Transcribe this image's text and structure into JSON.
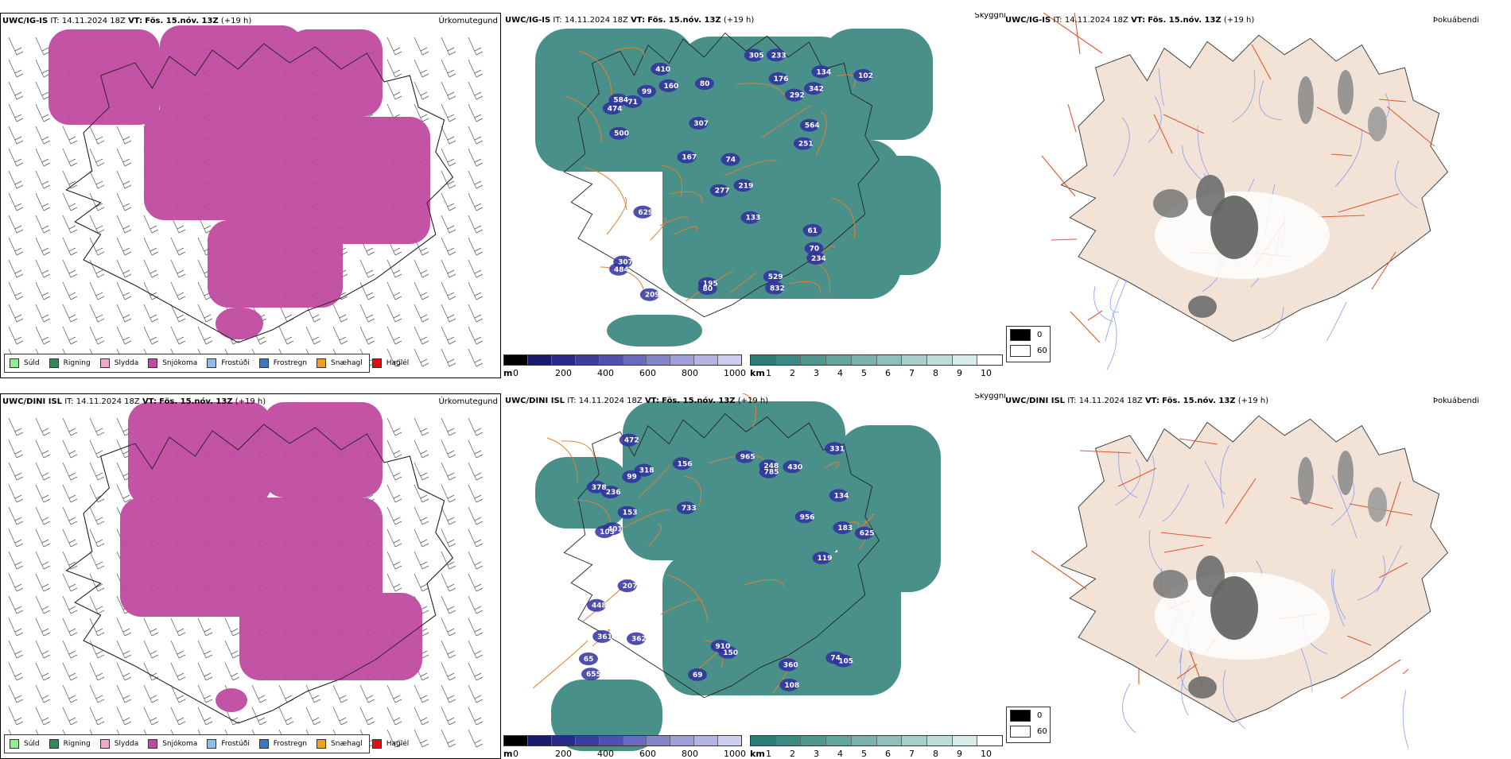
{
  "rows": [
    {
      "model": "UWC/IG-IS",
      "it_label": "IT:",
      "it_value": "14.11.2024 18Z",
      "vt_label": "VT:",
      "vt_value": "Fös. 15.nóv. 13Z",
      "lead": "(+19 h)"
    },
    {
      "model": "UWC/DINI ISL",
      "it_label": "IT:",
      "it_value": "14.11.2024 18Z",
      "vt_label": "VT:",
      "vt_value": "Fös. 15.nóv. 13Z",
      "lead": "(+19 h)"
    }
  ],
  "panel_titles": {
    "precip_type": "Úrkomutegund",
    "visibility": "Skyggni",
    "fog": "Þokuábendi"
  },
  "precip_legend": [
    {
      "label": "Súld",
      "color": "#90ee90"
    },
    {
      "label": "Rigning",
      "color": "#2e8b57"
    },
    {
      "label": "Slydda",
      "color": "#f4a7c8"
    },
    {
      "label": "Snjókoma",
      "color": "#c04aa0"
    },
    {
      "label": "Frostúði",
      "color": "#8fbde8"
    },
    {
      "label": "Frostregn",
      "color": "#3d78c4"
    },
    {
      "label": "Snæhagl",
      "color": "#f0a020"
    },
    {
      "label": "Haglél",
      "color": "#e01010"
    }
  ],
  "cloud_base_scale": {
    "unit": "m",
    "ticks": [
      "0",
      "200",
      "400",
      "600",
      "800",
      "1000"
    ],
    "colors": [
      "#000000",
      "#1a1a6e",
      "#2a2a8c",
      "#3d3d9e",
      "#5050b0",
      "#6a6abe",
      "#8585cc",
      "#a0a0da",
      "#b5b5e5",
      "#cdcdf0"
    ]
  },
  "visibility_scale": {
    "unit": "km",
    "ticks": [
      "1",
      "2",
      "3",
      "4",
      "5",
      "6",
      "7",
      "8",
      "9",
      "10"
    ],
    "colors": [
      "#2a7d76",
      "#3a8a83",
      "#4d9790",
      "#62a59e",
      "#78b3ad",
      "#8fc1bc",
      "#a7cfcb",
      "#bfdeda",
      "#d7ece9",
      "#ffffff"
    ]
  },
  "fog_legend": [
    {
      "label": "0",
      "color": "#000000"
    },
    {
      "label": "60",
      "color": "#ffffff"
    }
  ],
  "cloud_labels": [
    [
      "410",
      "564",
      "832",
      "474",
      "342",
      "484",
      "234",
      "277",
      "176",
      "292",
      "307",
      "233",
      "629",
      "500",
      "195",
      "219",
      "251",
      "160",
      "584",
      "307",
      "305",
      "209",
      "167",
      "529",
      "99",
      "102",
      "134",
      "80",
      "133",
      "80",
      "71",
      "74",
      "70",
      "61"
    ],
    [
      "655",
      "183",
      "248",
      "207",
      "361",
      "318",
      "360",
      "956",
      "401",
      "378",
      "733",
      "785",
      "910",
      "472",
      "362",
      "156",
      "150",
      "448",
      "625",
      "430",
      "965",
      "108",
      "99",
      "103",
      "134",
      "153",
      "105",
      "119",
      "65",
      "69",
      "331",
      "236",
      "74"
    ]
  ]
}
